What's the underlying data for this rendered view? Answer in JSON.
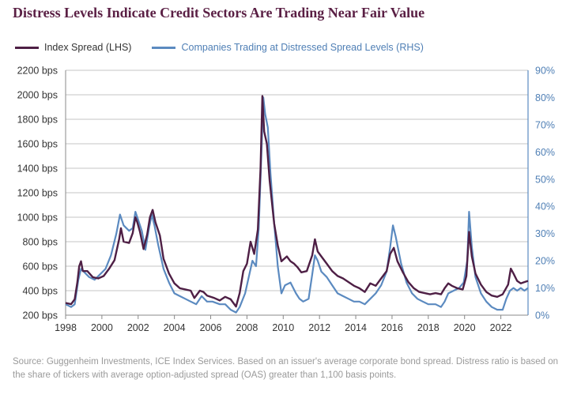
{
  "title": "Distress Levels Indicate Credit Sectors Are Trading Near Fair Value",
  "source": "Source: Guggenheim Investments, ICE Index Services. Based on an issuer's average corporate bond spread. Distress ratio is based on the share of tickers with average option-adjusted spread (OAS) greater than 1,100 basis points.",
  "colors": {
    "title": "#5a1f44",
    "lhs": "#4e1f45",
    "rhs": "#5b8ac0",
    "lhs_text": "#333333",
    "rhs_text": "#4f7fb5",
    "grid": "#c4c4c4",
    "source": "#9a9a9a"
  },
  "chart_data": {
    "type": "line",
    "title": "Distress Levels Indicate Credit Sectors Are Trading Near Fair Value",
    "legend_position": "top-left",
    "grid": true,
    "x_ticks": [
      "1998",
      "2000",
      "2002",
      "2004",
      "2006",
      "2008",
      "2010",
      "2012",
      "2014",
      "2016",
      "2018",
      "2020",
      "2022"
    ],
    "xlim": [
      1998,
      2023.5
    ],
    "y_left": {
      "ylim": [
        200,
        2200
      ],
      "ticks": [
        "200 bps",
        "400 bps",
        "600 bps",
        "800 bps",
        "1000 bps",
        "1200 bps",
        "1400 bps",
        "1600 bps",
        "1800 bps",
        "2000 bps",
        "2200 bps"
      ]
    },
    "y_right": {
      "ylim": [
        0,
        90
      ],
      "ticks": [
        "0%",
        "10%",
        "20%",
        "30%",
        "40%",
        "50%",
        "60%",
        "70%",
        "80%",
        "90%"
      ]
    },
    "series": [
      {
        "name": "Index Spread (LHS)",
        "axis": "left",
        "points": [
          [
            1998.0,
            300
          ],
          [
            1998.3,
            290
          ],
          [
            1998.5,
            330
          ],
          [
            1998.65,
            470
          ],
          [
            1998.75,
            600
          ],
          [
            1998.85,
            640
          ],
          [
            1998.95,
            560
          ],
          [
            1999.2,
            560
          ],
          [
            1999.5,
            510
          ],
          [
            1999.8,
            500
          ],
          [
            2000.1,
            520
          ],
          [
            2000.4,
            580
          ],
          [
            2000.7,
            650
          ],
          [
            2000.95,
            820
          ],
          [
            2001.05,
            910
          ],
          [
            2001.2,
            800
          ],
          [
            2001.5,
            790
          ],
          [
            2001.7,
            870
          ],
          [
            2001.85,
            1000
          ],
          [
            2001.95,
            960
          ],
          [
            2002.1,
            880
          ],
          [
            2002.3,
            740
          ],
          [
            2002.5,
            860
          ],
          [
            2002.65,
            1000
          ],
          [
            2002.8,
            1060
          ],
          [
            2002.95,
            960
          ],
          [
            2003.2,
            850
          ],
          [
            2003.4,
            660
          ],
          [
            2003.7,
            540
          ],
          [
            2004.0,
            460
          ],
          [
            2004.3,
            420
          ],
          [
            2004.6,
            410
          ],
          [
            2004.9,
            400
          ],
          [
            2005.1,
            340
          ],
          [
            2005.4,
            400
          ],
          [
            2005.6,
            390
          ],
          [
            2005.8,
            360
          ],
          [
            2006.2,
            340
          ],
          [
            2006.5,
            320
          ],
          [
            2006.8,
            350
          ],
          [
            2007.1,
            330
          ],
          [
            2007.4,
            270
          ],
          [
            2007.6,
            380
          ],
          [
            2007.8,
            560
          ],
          [
            2008.0,
            620
          ],
          [
            2008.2,
            800
          ],
          [
            2008.4,
            700
          ],
          [
            2008.6,
            900
          ],
          [
            2008.75,
            1400
          ],
          [
            2008.85,
            1990
          ],
          [
            2008.95,
            1700
          ],
          [
            2009.1,
            1600
          ],
          [
            2009.25,
            1300
          ],
          [
            2009.5,
            950
          ],
          [
            2009.7,
            770
          ],
          [
            2009.9,
            640
          ],
          [
            2010.2,
            680
          ],
          [
            2010.4,
            640
          ],
          [
            2010.6,
            620
          ],
          [
            2010.8,
            590
          ],
          [
            2011.0,
            550
          ],
          [
            2011.3,
            560
          ],
          [
            2011.6,
            690
          ],
          [
            2011.75,
            820
          ],
          [
            2011.9,
            720
          ],
          [
            2012.1,
            680
          ],
          [
            2012.4,
            620
          ],
          [
            2012.7,
            560
          ],
          [
            2013.0,
            520
          ],
          [
            2013.3,
            500
          ],
          [
            2013.6,
            470
          ],
          [
            2013.9,
            440
          ],
          [
            2014.2,
            420
          ],
          [
            2014.5,
            390
          ],
          [
            2014.8,
            460
          ],
          [
            2015.1,
            440
          ],
          [
            2015.4,
            500
          ],
          [
            2015.7,
            560
          ],
          [
            2015.9,
            700
          ],
          [
            2016.1,
            750
          ],
          [
            2016.3,
            640
          ],
          [
            2016.6,
            550
          ],
          [
            2016.9,
            470
          ],
          [
            2017.2,
            420
          ],
          [
            2017.5,
            390
          ],
          [
            2017.8,
            380
          ],
          [
            2018.1,
            370
          ],
          [
            2018.4,
            380
          ],
          [
            2018.7,
            370
          ],
          [
            2018.9,
            420
          ],
          [
            2019.1,
            460
          ],
          [
            2019.3,
            440
          ],
          [
            2019.6,
            420
          ],
          [
            2019.9,
            410
          ],
          [
            2020.1,
            520
          ],
          [
            2020.25,
            880
          ],
          [
            2020.4,
            680
          ],
          [
            2020.6,
            540
          ],
          [
            2020.9,
            450
          ],
          [
            2021.2,
            390
          ],
          [
            2021.5,
            360
          ],
          [
            2021.8,
            350
          ],
          [
            2022.1,
            370
          ],
          [
            2022.4,
            450
          ],
          [
            2022.55,
            580
          ],
          [
            2022.7,
            540
          ],
          [
            2022.9,
            480
          ],
          [
            2023.1,
            460
          ],
          [
            2023.3,
            470
          ],
          [
            2023.5,
            480
          ]
        ]
      },
      {
        "name": "Companies Trading at Distressed Spread Levels (RHS)",
        "axis": "right",
        "points": [
          [
            1998.0,
            4
          ],
          [
            1998.3,
            3
          ],
          [
            1998.5,
            4
          ],
          [
            1998.7,
            13
          ],
          [
            1998.85,
            17
          ],
          [
            1999.0,
            16
          ],
          [
            1999.3,
            14
          ],
          [
            1999.6,
            13
          ],
          [
            1999.9,
            15
          ],
          [
            2000.2,
            17
          ],
          [
            2000.5,
            22
          ],
          [
            2000.8,
            30
          ],
          [
            2001.0,
            37
          ],
          [
            2001.2,
            33
          ],
          [
            2001.5,
            31
          ],
          [
            2001.7,
            32
          ],
          [
            2001.85,
            38
          ],
          [
            2002.0,
            35
          ],
          [
            2002.2,
            31
          ],
          [
            2002.4,
            24
          ],
          [
            2002.6,
            32
          ],
          [
            2002.75,
            37
          ],
          [
            2002.9,
            33
          ],
          [
            2003.1,
            26
          ],
          [
            2003.4,
            17
          ],
          [
            2003.7,
            12
          ],
          [
            2004.0,
            8
          ],
          [
            2004.3,
            7
          ],
          [
            2004.6,
            6
          ],
          [
            2004.9,
            5
          ],
          [
            2005.2,
            4
          ],
          [
            2005.5,
            7
          ],
          [
            2005.8,
            5
          ],
          [
            2006.1,
            5
          ],
          [
            2006.5,
            4
          ],
          [
            2006.8,
            4
          ],
          [
            2007.1,
            2
          ],
          [
            2007.4,
            1
          ],
          [
            2007.6,
            3
          ],
          [
            2007.9,
            8
          ],
          [
            2008.1,
            14
          ],
          [
            2008.3,
            20
          ],
          [
            2008.5,
            18
          ],
          [
            2008.65,
            32
          ],
          [
            2008.8,
            60
          ],
          [
            2008.9,
            80
          ],
          [
            2009.0,
            74
          ],
          [
            2009.15,
            69
          ],
          [
            2009.3,
            52
          ],
          [
            2009.5,
            34
          ],
          [
            2009.7,
            18
          ],
          [
            2009.9,
            8
          ],
          [
            2010.1,
            11
          ],
          [
            2010.4,
            12
          ],
          [
            2010.7,
            8
          ],
          [
            2010.9,
            6
          ],
          [
            2011.1,
            5
          ],
          [
            2011.4,
            6
          ],
          [
            2011.6,
            15
          ],
          [
            2011.75,
            22
          ],
          [
            2011.9,
            20
          ],
          [
            2012.1,
            16
          ],
          [
            2012.4,
            14
          ],
          [
            2012.7,
            11
          ],
          [
            2013.0,
            8
          ],
          [
            2013.3,
            7
          ],
          [
            2013.6,
            6
          ],
          [
            2013.9,
            5
          ],
          [
            2014.2,
            5
          ],
          [
            2014.5,
            4
          ],
          [
            2014.8,
            6
          ],
          [
            2015.1,
            8
          ],
          [
            2015.4,
            11
          ],
          [
            2015.7,
            16
          ],
          [
            2015.9,
            25
          ],
          [
            2016.05,
            33
          ],
          [
            2016.2,
            29
          ],
          [
            2016.5,
            19
          ],
          [
            2016.8,
            12
          ],
          [
            2017.1,
            8
          ],
          [
            2017.4,
            6
          ],
          [
            2017.7,
            5
          ],
          [
            2018.0,
            4
          ],
          [
            2018.4,
            4
          ],
          [
            2018.7,
            3
          ],
          [
            2018.9,
            5
          ],
          [
            2019.1,
            8
          ],
          [
            2019.4,
            9
          ],
          [
            2019.7,
            10
          ],
          [
            2019.95,
            12
          ],
          [
            2020.15,
            20
          ],
          [
            2020.25,
            38
          ],
          [
            2020.4,
            25
          ],
          [
            2020.6,
            14
          ],
          [
            2020.9,
            8
          ],
          [
            2021.2,
            5
          ],
          [
            2021.5,
            3
          ],
          [
            2021.8,
            2
          ],
          [
            2022.1,
            2
          ],
          [
            2022.3,
            6
          ],
          [
            2022.5,
            9
          ],
          [
            2022.7,
            10
          ],
          [
            2022.9,
            9
          ],
          [
            2023.1,
            10
          ],
          [
            2023.3,
            9
          ],
          [
            2023.5,
            10
          ]
        ]
      }
    ]
  }
}
